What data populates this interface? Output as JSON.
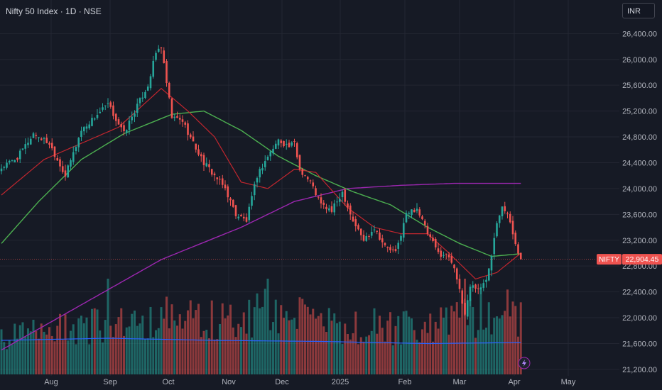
{
  "header": {
    "title": "Nifty 50 Index · 1D · NSE",
    "currency": "INR"
  },
  "price_tag": {
    "symbol": "NIFTY",
    "value": "22,904.45"
  },
  "colors": {
    "background": "#161a25",
    "up": "#26a69a",
    "down": "#ef5350",
    "ma_fast": "#c2262e",
    "ma_mid": "#4caf50",
    "ma_slow": "#9c27b0",
    "vol_ma": "#2962ff"
  },
  "chart_data": {
    "type": "candlestick",
    "x_ticks": [
      "Aug",
      "Sep",
      "Oct",
      "Nov",
      "Dec",
      "2025",
      "Feb",
      "Mar",
      "Apr",
      "May"
    ],
    "y_ticks": [
      "26,400.00",
      "26,000.00",
      "25,600.00",
      "25,200.00",
      "24,800.00",
      "24,400.00",
      "24,000.00",
      "23,600.00",
      "23,200.00",
      "22,800.00",
      "22,400.00",
      "22,000.00",
      "21,600.00",
      "21,200.00"
    ],
    "ylim": [
      21100,
      26700
    ],
    "last_price": 22904.45,
    "close_points": [
      [
        0,
        24320
      ],
      [
        6,
        24480
      ],
      [
        12,
        24850
      ],
      [
        18,
        24700
      ],
      [
        24,
        24200
      ],
      [
        30,
        24900
      ],
      [
        36,
        25150
      ],
      [
        40,
        25300
      ],
      [
        46,
        24850
      ],
      [
        50,
        25200
      ],
      [
        55,
        25600
      ],
      [
        58,
        26100
      ],
      [
        60,
        26200
      ],
      [
        61,
        25900
      ],
      [
        64,
        25100
      ],
      [
        68,
        25050
      ],
      [
        72,
        24700
      ],
      [
        76,
        24400
      ],
      [
        80,
        24200
      ],
      [
        84,
        24000
      ],
      [
        88,
        23600
      ],
      [
        92,
        23500
      ],
      [
        96,
        24200
      ],
      [
        100,
        24500
      ],
      [
        104,
        24750
      ],
      [
        108,
        24650
      ],
      [
        110,
        24700
      ],
      [
        112,
        24300
      ],
      [
        116,
        24100
      ],
      [
        120,
        23750
      ],
      [
        124,
        23650
      ],
      [
        128,
        23950
      ],
      [
        132,
        23500
      ],
      [
        136,
        23200
      ],
      [
        140,
        23400
      ],
      [
        144,
        23100
      ],
      [
        148,
        23000
      ],
      [
        152,
        23600
      ],
      [
        156,
        23700
      ],
      [
        160,
        23300
      ],
      [
        164,
        23000
      ],
      [
        168,
        22950
      ],
      [
        170,
        22800
      ],
      [
        172,
        22400
      ],
      [
        174,
        22050
      ],
      [
        176,
        22500
      ],
      [
        180,
        22450
      ],
      [
        182,
        22600
      ],
      [
        184,
        23000
      ],
      [
        186,
        23500
      ],
      [
        188,
        23750
      ],
      [
        190,
        23600
      ],
      [
        192,
        23300
      ],
      [
        195,
        22904
      ]
    ],
    "series": [
      {
        "name": "",
        "type": "ma_fast",
        "points": [
          [
            0,
            23900
          ],
          [
            16,
            24450
          ],
          [
            30,
            24700
          ],
          [
            44,
            24950
          ],
          [
            60,
            25550
          ],
          [
            70,
            25200
          ],
          [
            80,
            24800
          ],
          [
            90,
            24100
          ],
          [
            100,
            24000
          ],
          [
            110,
            24300
          ],
          [
            118,
            24250
          ],
          [
            130,
            23700
          ],
          [
            140,
            23400
          ],
          [
            150,
            23300
          ],
          [
            160,
            23300
          ],
          [
            168,
            23000
          ],
          [
            178,
            22600
          ],
          [
            186,
            22700
          ],
          [
            195,
            23000
          ]
        ]
      },
      {
        "name": "",
        "type": "ma_mid",
        "points": [
          [
            0,
            23150
          ],
          [
            14,
            23800
          ],
          [
            30,
            24450
          ],
          [
            46,
            24850
          ],
          [
            64,
            25150
          ],
          [
            76,
            25200
          ],
          [
            90,
            24900
          ],
          [
            104,
            24500
          ],
          [
            118,
            24200
          ],
          [
            132,
            23950
          ],
          [
            146,
            23750
          ],
          [
            160,
            23400
          ],
          [
            172,
            23150
          ],
          [
            184,
            22950
          ],
          [
            195,
            22990
          ]
        ]
      },
      {
        "name": "",
        "type": "ma_slow",
        "points": [
          [
            0,
            21500
          ],
          [
            30,
            22200
          ],
          [
            60,
            22900
          ],
          [
            90,
            23400
          ],
          [
            110,
            23800
          ],
          [
            130,
            24000
          ],
          [
            150,
            24050
          ],
          [
            170,
            24080
          ],
          [
            195,
            24080
          ]
        ]
      },
      {
        "name": "",
        "type": "volume",
        "points": [
          [
            0,
            0.38
          ],
          [
            30,
            0.52
          ],
          [
            60,
            0.62
          ],
          [
            90,
            0.58
          ],
          [
            100,
            0.72
          ],
          [
            120,
            0.55
          ],
          [
            160,
            0.5
          ],
          [
            174,
            0.62
          ],
          [
            186,
            0.75
          ],
          [
            195,
            0.7
          ]
        ]
      },
      {
        "name": "",
        "type": "volume_ma",
        "points": [
          [
            0,
            0.32
          ],
          [
            40,
            0.34
          ],
          [
            80,
            0.32
          ],
          [
            120,
            0.31
          ],
          [
            160,
            0.29
          ],
          [
            195,
            0.3
          ]
        ]
      }
    ]
  }
}
